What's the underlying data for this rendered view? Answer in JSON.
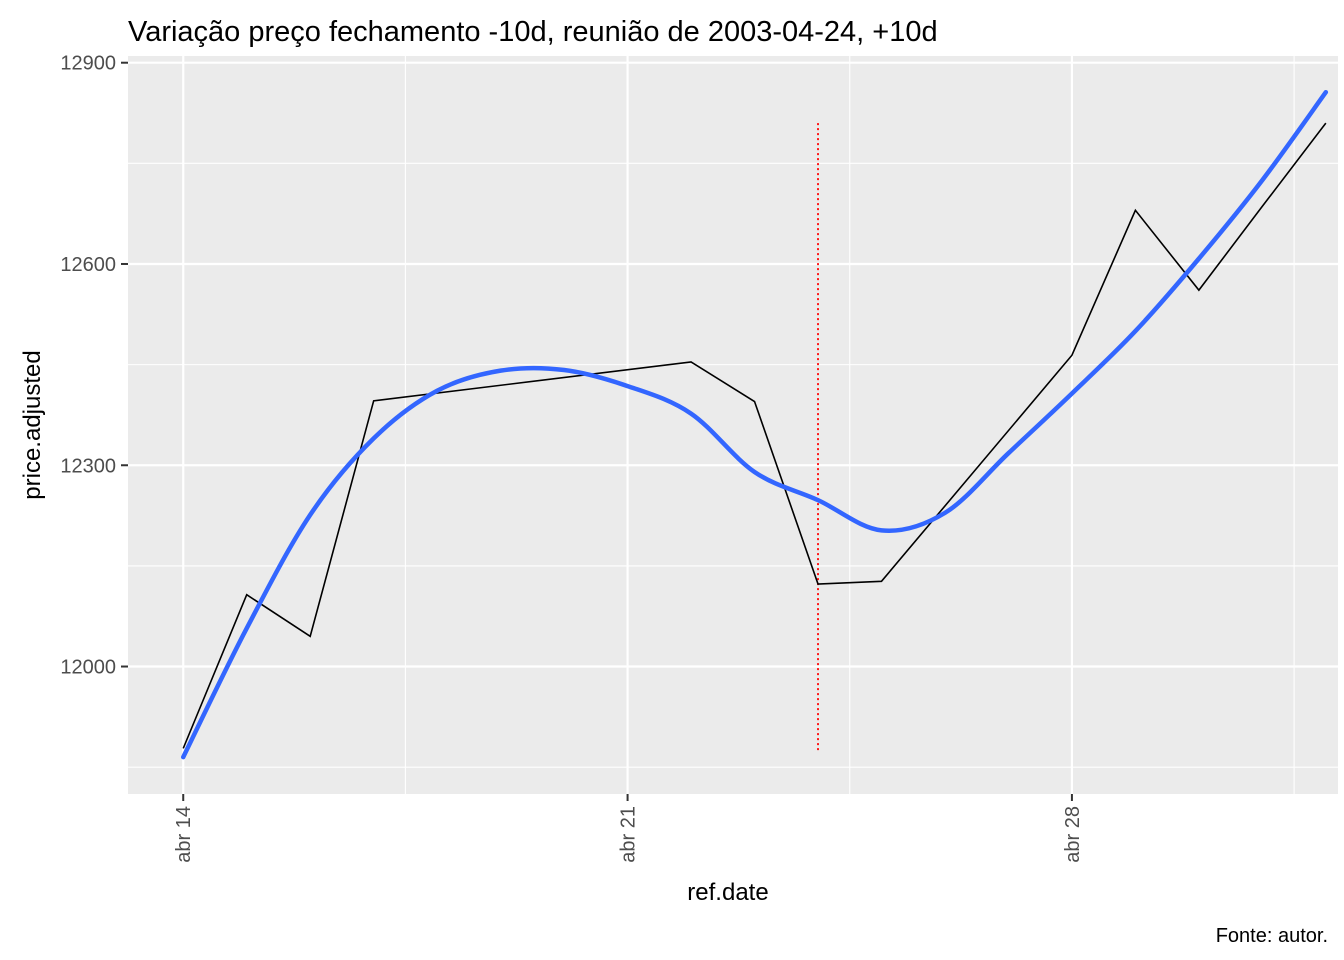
{
  "chart_data": {
    "type": "line",
    "title": "Variação preço fechamento -10d, reunião de 2003-04-24, +10d",
    "xlabel": "ref.date",
    "ylabel": "price.adjusted",
    "caption": "Fonte: autor.",
    "x_ticks": [
      {
        "date": "2003-04-14",
        "label": "abr 14"
      },
      {
        "date": "2003-04-21",
        "label": "abr 21"
      },
      {
        "date": "2003-04-28",
        "label": "abr 28"
      }
    ],
    "y_ticks": [
      12000,
      12300,
      12600,
      12900
    ],
    "y_tick_labels": [
      "12000",
      "12300",
      "12600",
      "12900"
    ],
    "xlim": [
      "2003-04-13T03:07",
      "2003-05-02T04:36"
    ],
    "ylim": [
      11810,
      12910
    ],
    "grid": true,
    "legend": "none",
    "series": [
      {
        "color": "#000000",
        "style": "line",
        "x": [
          "2003-04-14",
          "2003-04-15",
          "2003-04-16",
          "2003-04-17",
          "2003-04-22",
          "2003-04-23",
          "2003-04-24",
          "2003-04-25",
          "2003-04-28",
          "2003-04-29",
          "2003-04-30",
          "2003-05-01",
          "2003-05-02"
        ],
        "values": [
          11878,
          12107,
          12045,
          12396,
          12454,
          12395,
          12123,
          12127,
          12464,
          12680,
          12561,
          12686,
          12810
        ]
      },
      {
        "color": "#3366FF",
        "style": "smooth",
        "x": [
          "2003-04-14",
          "2003-04-15",
          "2003-04-16",
          "2003-04-17",
          "2003-04-18",
          "2003-04-19",
          "2003-04-20",
          "2003-04-21",
          "2003-04-22",
          "2003-04-23",
          "2003-04-24",
          "2003-04-25",
          "2003-04-26",
          "2003-04-27",
          "2003-04-28",
          "2003-04-29",
          "2003-04-30",
          "2003-05-01",
          "2003-05-02"
        ],
        "values": [
          11865,
          12057,
          12226,
          12340,
          12411,
          12441,
          12442,
          12418,
          12377,
          12290,
          12248,
          12203,
          12229,
          12318,
          12407,
          12500,
          12608,
          12725,
          12856
        ]
      }
    ],
    "vline": {
      "x": "2003-04-24",
      "color": "#FF0000",
      "style": "dotted",
      "y_range": [
        11875,
        12810
      ]
    }
  }
}
